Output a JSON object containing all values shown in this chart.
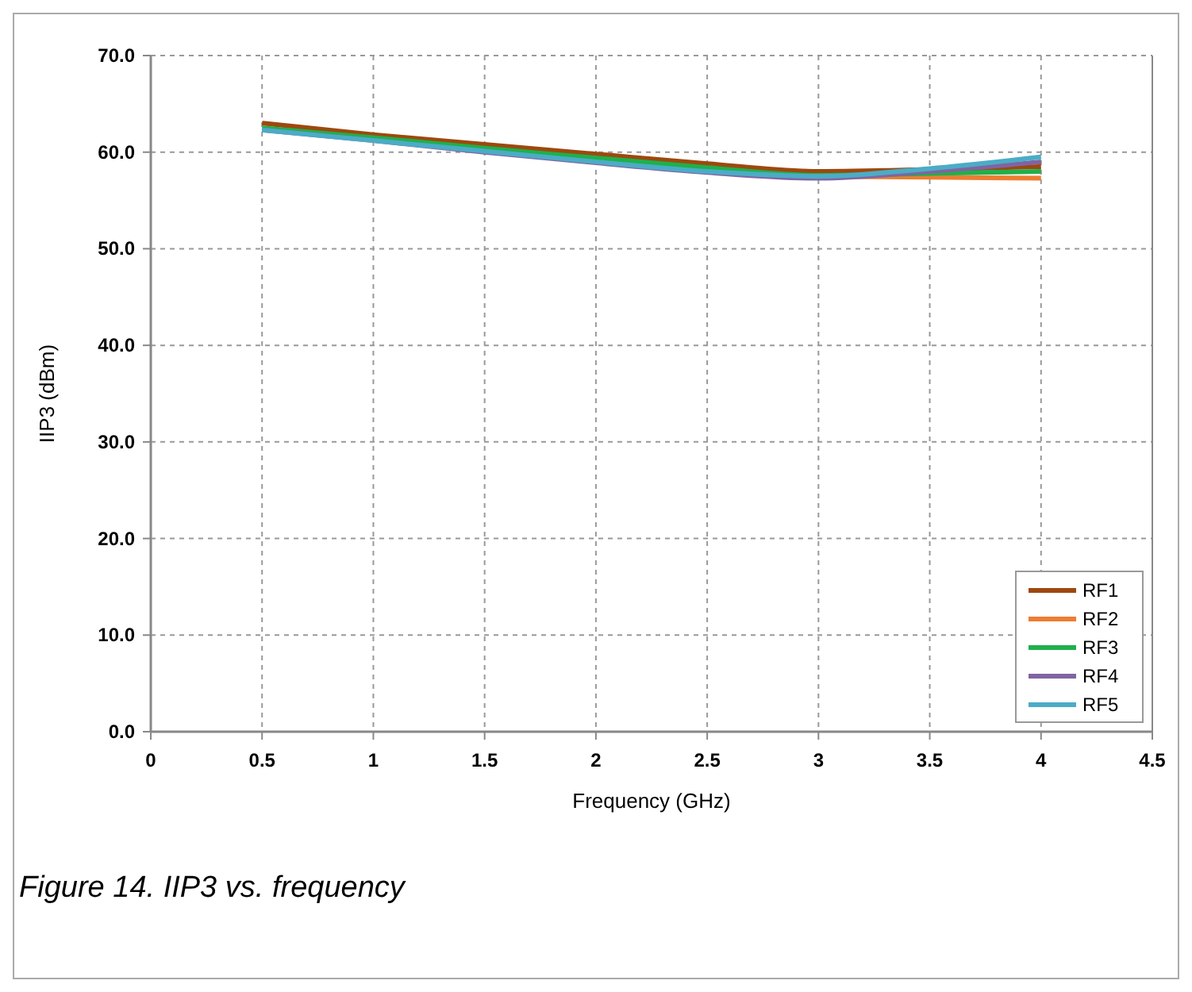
{
  "chart_data": {
    "type": "line",
    "xlabel": "Frequency (GHz)",
    "ylabel": "IIP3 (dBm)",
    "annotations": [
      "Figure 14. IIP3 vs. frequency"
    ],
    "x": [
      0.5,
      1,
      1.5,
      2,
      2.5,
      3,
      3.5,
      4
    ],
    "xlim": [
      0,
      4.5
    ],
    "xticks": [
      0,
      0.5,
      1,
      1.5,
      2,
      2.5,
      3,
      3.5,
      4,
      4.5
    ],
    "ylim": [
      0,
      70
    ],
    "yticks": [
      {
        "value": 0,
        "label": "0.0"
      },
      {
        "value": 10,
        "label": "10.0"
      },
      {
        "value": 20,
        "label": "20.0"
      },
      {
        "value": 30,
        "label": "30.0"
      },
      {
        "value": 40,
        "label": "40.0"
      },
      {
        "value": 50,
        "label": "50.0"
      },
      {
        "value": 60,
        "label": "60.0"
      },
      {
        "value": 70,
        "label": "70.0"
      }
    ],
    "grid": true,
    "legend": "bottom right",
    "marker": "none",
    "line_style": "solid",
    "series": [
      {
        "name": "RF1",
        "color": "#9e480e",
        "values": [
          63.0,
          61.8,
          60.8,
          59.8,
          58.8,
          58.0,
          58.2,
          58.5
        ]
      },
      {
        "name": "RF2",
        "color": "#ed7d31",
        "values": [
          null,
          null,
          null,
          null,
          null,
          57.5,
          57.4,
          57.3
        ]
      },
      {
        "name": "RF3",
        "color": "#1fb04b",
        "values": [
          62.5,
          61.5,
          60.4,
          59.4,
          58.4,
          57.6,
          57.8,
          58.0
        ]
      },
      {
        "name": "RF4",
        "color": "#8064a2",
        "values": [
          62.3,
          61.2,
          60.0,
          58.9,
          57.9,
          57.3,
          58.0,
          59.0
        ]
      },
      {
        "name": "RF5",
        "color": "#4bacc6",
        "values": [
          62.3,
          61.2,
          60.1,
          59.0,
          58.0,
          57.5,
          58.3,
          59.5
        ]
      }
    ]
  }
}
